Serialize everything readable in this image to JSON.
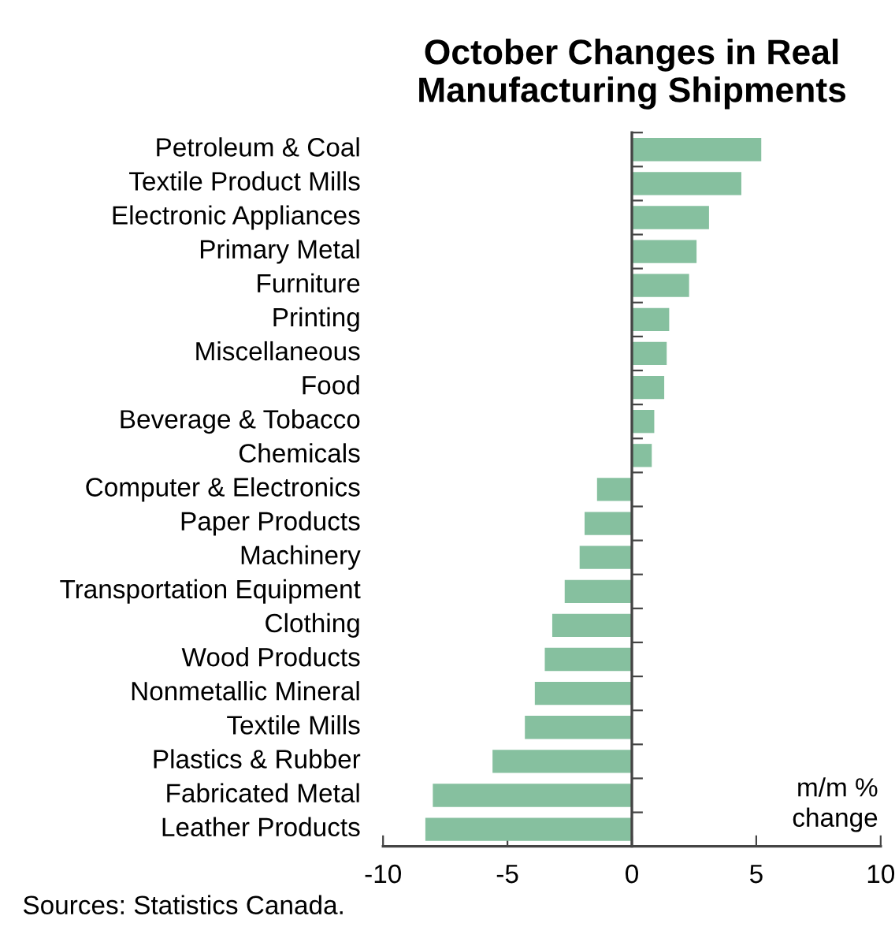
{
  "chart_data": {
    "type": "bar",
    "orientation": "horizontal",
    "title": "October Changes in Real\nManufacturing Shipments",
    "xlabel": "m/m %\nchange",
    "categories": [
      "Petroleum & Coal",
      "Textile Product Mills",
      "Electronic Appliances",
      "Primary Metal",
      "Furniture",
      "Printing",
      "Miscellaneous",
      "Food",
      "Beverage & Tobacco",
      "Chemicals",
      "Computer & Electronics",
      "Paper Products",
      "Machinery",
      "Transportation Equipment",
      "Clothing",
      "Wood Products",
      "Nonmetallic Mineral",
      "Textile Mills",
      "Plastics & Rubber",
      "Fabricated Metal",
      "Leather Products"
    ],
    "values": [
      5.2,
      4.4,
      3.1,
      2.6,
      2.3,
      1.5,
      1.4,
      1.3,
      0.9,
      0.8,
      -1.4,
      -1.9,
      -2.1,
      -2.7,
      -3.2,
      -3.5,
      -3.9,
      -4.3,
      -5.6,
      -8.0,
      -8.3
    ],
    "color": "#86c09f",
    "xlim": [
      -10,
      10
    ],
    "xticks": [
      -10,
      -5,
      0,
      5,
      10
    ],
    "legend": false,
    "annotations": [
      "Sources: Statistics Canada."
    ]
  }
}
